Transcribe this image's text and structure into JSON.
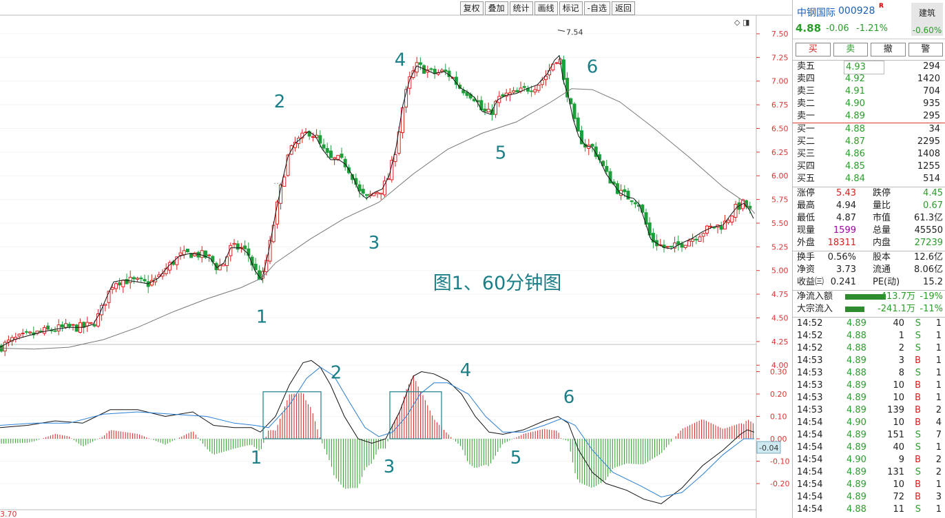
{
  "toolbar": [
    "复权",
    "叠加",
    "统计",
    "画线",
    "标记",
    "-自选",
    "返回"
  ],
  "chart_data": [
    {
      "type": "candlestick",
      "title": "图1、60分钟图",
      "y_ticks": [
        "7.50",
        "7.25",
        "7.00",
        "6.75",
        "6.50",
        "6.25",
        "6.00",
        "5.75",
        "5.50",
        "5.25",
        "5.00",
        "4.75",
        "4.50",
        "4.25",
        "4.00"
      ],
      "ylim": [
        3.83,
        7.7
      ],
      "max_label": "7.54",
      "close_path": [
        [
          0,
          4.19
        ],
        [
          20,
          4.27
        ],
        [
          40,
          4.31
        ],
        [
          60,
          4.35
        ],
        [
          80,
          4.38
        ],
        [
          100,
          4.4
        ],
        [
          120,
          4.4
        ],
        [
          135,
          4.43
        ],
        [
          145,
          4.55
        ],
        [
          155,
          4.72
        ],
        [
          165,
          4.88
        ],
        [
          180,
          4.9
        ],
        [
          200,
          4.88
        ],
        [
          215,
          4.86
        ],
        [
          230,
          4.92
        ],
        [
          245,
          5.05
        ],
        [
          260,
          5.15
        ],
        [
          275,
          5.18
        ],
        [
          290,
          5.17
        ],
        [
          305,
          5.13
        ],
        [
          315,
          5.03
        ],
        [
          325,
          5.08
        ],
        [
          335,
          5.24
        ],
        [
          350,
          5.24
        ],
        [
          360,
          5.18
        ],
        [
          370,
          5.0
        ],
        [
          380,
          4.9
        ],
        [
          390,
          5.2
        ],
        [
          400,
          5.6
        ],
        [
          410,
          5.95
        ],
        [
          418,
          6.2
        ],
        [
          428,
          6.34
        ],
        [
          438,
          6.4
        ],
        [
          448,
          6.47
        ],
        [
          458,
          6.42
        ],
        [
          468,
          6.28
        ],
        [
          480,
          6.17
        ],
        [
          492,
          6.17
        ],
        [
          502,
          6.12
        ],
        [
          512,
          6.0
        ],
        [
          522,
          5.82
        ],
        [
          532,
          5.76
        ],
        [
          545,
          5.83
        ],
        [
          555,
          5.86
        ],
        [
          565,
          6.0
        ],
        [
          575,
          6.3
        ],
        [
          585,
          6.75
        ],
        [
          595,
          7.02
        ],
        [
          605,
          7.16
        ],
        [
          618,
          7.12
        ],
        [
          630,
          7.08
        ],
        [
          645,
          7.1
        ],
        [
          655,
          7.05
        ],
        [
          668,
          6.93
        ],
        [
          680,
          6.88
        ],
        [
          690,
          6.82
        ],
        [
          700,
          6.68
        ],
        [
          712,
          6.65
        ],
        [
          722,
          6.8
        ],
        [
          735,
          6.85
        ],
        [
          750,
          6.87
        ],
        [
          765,
          6.92
        ],
        [
          780,
          6.96
        ],
        [
          795,
          7.08
        ],
        [
          805,
          7.22
        ],
        [
          812,
          7.27
        ],
        [
          818,
          7.0
        ],
        [
          825,
          6.85
        ],
        [
          832,
          6.6
        ],
        [
          840,
          6.42
        ],
        [
          850,
          6.32
        ],
        [
          860,
          6.3
        ],
        [
          870,
          6.18
        ],
        [
          880,
          6.02
        ],
        [
          890,
          5.92
        ],
        [
          900,
          5.82
        ],
        [
          910,
          5.78
        ],
        [
          920,
          5.76
        ],
        [
          928,
          5.7
        ],
        [
          935,
          5.55
        ],
        [
          945,
          5.33
        ],
        [
          955,
          5.28
        ],
        [
          965,
          5.24
        ],
        [
          975,
          5.23
        ],
        [
          990,
          5.29
        ],
        [
          1005,
          5.34
        ],
        [
          1020,
          5.41
        ],
        [
          1035,
          5.46
        ],
        [
          1050,
          5.48
        ],
        [
          1060,
          5.58
        ],
        [
          1070,
          5.67
        ],
        [
          1080,
          5.71
        ],
        [
          1088,
          5.64
        ],
        [
          1094,
          5.55
        ]
      ],
      "ma_path": [
        [
          0,
          4.18
        ],
        [
          50,
          4.17
        ],
        [
          100,
          4.19
        ],
        [
          150,
          4.27
        ],
        [
          200,
          4.4
        ],
        [
          250,
          4.56
        ],
        [
          300,
          4.7
        ],
        [
          350,
          4.82
        ],
        [
          380,
          4.92
        ],
        [
          400,
          5.08
        ],
        [
          450,
          5.33
        ],
        [
          500,
          5.55
        ],
        [
          550,
          5.72
        ],
        [
          600,
          6.02
        ],
        [
          650,
          6.28
        ],
        [
          700,
          6.45
        ],
        [
          750,
          6.57
        ],
        [
          800,
          6.78
        ],
        [
          830,
          6.92
        ],
        [
          860,
          6.91
        ],
        [
          900,
          6.78
        ],
        [
          950,
          6.5
        ],
        [
          1000,
          6.2
        ],
        [
          1050,
          5.88
        ],
        [
          1080,
          5.73
        ],
        [
          1096,
          5.6
        ]
      ],
      "annotations": [
        {
          "text": "1",
          "x": 380,
          "y": 4.45
        },
        {
          "text": "2",
          "x": 406,
          "y": 6.72
        },
        {
          "text": "3",
          "x": 543,
          "y": 5.23
        },
        {
          "text": "4",
          "x": 581,
          "y": 7.16
        },
        {
          "text": "5",
          "x": 727,
          "y": 6.18
        },
        {
          "text": "6",
          "x": 860,
          "y": 7.09
        }
      ]
    },
    {
      "type": "macd",
      "y_ticks": [
        "0.30",
        "0.20",
        "0.10",
        "0.00",
        "-0.10",
        "-0.20"
      ],
      "ylim": [
        -0.3,
        0.4
      ],
      "current_value": "-0.04",
      "dif_path": [
        [
          0,
          0.05
        ],
        [
          40,
          0.06
        ],
        [
          80,
          0.08
        ],
        [
          120,
          0.07
        ],
        [
          160,
          0.13
        ],
        [
          200,
          0.13
        ],
        [
          240,
          0.1
        ],
        [
          280,
          0.12
        ],
        [
          310,
          0.06
        ],
        [
          340,
          0.05
        ],
        [
          365,
          0.05
        ],
        [
          378,
          0.03
        ],
        [
          400,
          0.1
        ],
        [
          420,
          0.24
        ],
        [
          440,
          0.34
        ],
        [
          452,
          0.35
        ],
        [
          465,
          0.32
        ],
        [
          480,
          0.24
        ],
        [
          500,
          0.1
        ],
        [
          520,
          0.0
        ],
        [
          540,
          -0.02
        ],
        [
          560,
          0.0
        ],
        [
          580,
          0.12
        ],
        [
          600,
          0.28
        ],
        [
          612,
          0.3
        ],
        [
          630,
          0.29
        ],
        [
          650,
          0.26
        ],
        [
          670,
          0.2
        ],
        [
          690,
          0.1
        ],
        [
          710,
          0.03
        ],
        [
          730,
          0.02
        ],
        [
          760,
          0.04
        ],
        [
          790,
          0.08
        ],
        [
          810,
          0.1
        ],
        [
          825,
          0.07
        ],
        [
          840,
          -0.05
        ],
        [
          860,
          -0.15
        ],
        [
          880,
          -0.2
        ],
        [
          910,
          -0.23
        ],
        [
          935,
          -0.27
        ],
        [
          960,
          -0.29
        ],
        [
          990,
          -0.22
        ],
        [
          1020,
          -0.12
        ],
        [
          1050,
          -0.05
        ],
        [
          1075,
          0.02
        ],
        [
          1085,
          0.04
        ],
        [
          1095,
          0.03
        ]
      ],
      "dea_path": [
        [
          0,
          0.06
        ],
        [
          50,
          0.07
        ],
        [
          100,
          0.07
        ],
        [
          150,
          0.11
        ],
        [
          200,
          0.12
        ],
        [
          250,
          0.11
        ],
        [
          300,
          0.1
        ],
        [
          340,
          0.07
        ],
        [
          370,
          0.06
        ],
        [
          390,
          0.05
        ],
        [
          420,
          0.15
        ],
        [
          445,
          0.27
        ],
        [
          465,
          0.32
        ],
        [
          485,
          0.28
        ],
        [
          510,
          0.15
        ],
        [
          530,
          0.05
        ],
        [
          550,
          0.01
        ],
        [
          570,
          0.03
        ],
        [
          590,
          0.1
        ],
        [
          610,
          0.2
        ],
        [
          630,
          0.25
        ],
        [
          650,
          0.25
        ],
        [
          680,
          0.2
        ],
        [
          705,
          0.1
        ],
        [
          730,
          0.03
        ],
        [
          760,
          0.03
        ],
        [
          790,
          0.06
        ],
        [
          815,
          0.09
        ],
        [
          835,
          0.06
        ],
        [
          860,
          -0.05
        ],
        [
          890,
          -0.15
        ],
        [
          930,
          -0.21
        ],
        [
          960,
          -0.26
        ],
        [
          990,
          -0.24
        ],
        [
          1020,
          -0.16
        ],
        [
          1050,
          -0.07
        ],
        [
          1080,
          0.0
        ],
        [
          1095,
          0.0
        ]
      ],
      "annotations": [
        {
          "text": "1",
          "x": 372,
          "y": -0.11
        },
        {
          "text": "2",
          "x": 488,
          "y": 0.27
        },
        {
          "text": "3",
          "x": 565,
          "y": -0.15
        },
        {
          "text": "4",
          "x": 676,
          "y": 0.28
        },
        {
          "text": "5",
          "x": 749,
          "y": -0.11
        },
        {
          "text": "6",
          "x": 826,
          "y": 0.16
        }
      ],
      "boxes": [
        {
          "x0": 382,
          "x1": 466,
          "y0": 0.21,
          "y1": 0.0
        },
        {
          "x0": 566,
          "x1": 641,
          "y0": 0.21,
          "y1": 0.0
        }
      ]
    }
  ],
  "bottom_label": "3.70",
  "panel": {
    "stock_name": "中钢国际",
    "stock_code": "000928",
    "badge": "R",
    "price": "4.88",
    "change": "-0.06",
    "change_pct": "-1.21%",
    "sector": {
      "name": "建筑",
      "pct": "-0.60%"
    },
    "buttons": [
      "买",
      "卖",
      "撤",
      "警"
    ],
    "asks": [
      {
        "label": "卖五",
        "price": "4.93",
        "vol": "294"
      },
      {
        "label": "卖四",
        "price": "4.92",
        "vol": "1420"
      },
      {
        "label": "卖三",
        "price": "4.91",
        "vol": "704"
      },
      {
        "label": "卖二",
        "price": "4.90",
        "vol": "935"
      },
      {
        "label": "卖一",
        "price": "4.89",
        "vol": "295"
      }
    ],
    "bids": [
      {
        "label": "买一",
        "price": "4.88",
        "vol": "34"
      },
      {
        "label": "买二",
        "price": "4.87",
        "vol": "2295"
      },
      {
        "label": "买三",
        "price": "4.86",
        "vol": "1408"
      },
      {
        "label": "买四",
        "price": "4.85",
        "vol": "1255"
      },
      {
        "label": "买五",
        "price": "4.84",
        "vol": "514"
      }
    ],
    "stats1": [
      {
        "l1": "涨停",
        "v1": "5.43",
        "c1": "red",
        "l2": "跌停",
        "v2": "4.45",
        "c2": "green"
      },
      {
        "l1": "最高",
        "v1": "4.94",
        "c1": "",
        "l2": "量比",
        "v2": "0.67",
        "c2": "green"
      },
      {
        "l1": "最低",
        "v1": "4.87",
        "c1": "",
        "l2": "市值",
        "v2": "61.3亿",
        "c2": ""
      },
      {
        "l1": "现量",
        "v1": "1599",
        "c1": "purple",
        "l2": "总量",
        "v2": "45550",
        "c2": ""
      },
      {
        "l1": "外盘",
        "v1": "18311",
        "c1": "red",
        "l2": "内盘",
        "v2": "27239",
        "c2": "green"
      }
    ],
    "stats2": [
      {
        "l1": "换手",
        "v1": "0.56%",
        "c1": "",
        "l2": "股本",
        "v2": "12.6亿",
        "c2": ""
      },
      {
        "l1": "净资",
        "v1": "3.73",
        "c1": "",
        "l2": "流通",
        "v2": "8.06亿",
        "c2": ""
      },
      {
        "l1": "收益㈢",
        "v1": "0.241",
        "c1": "",
        "l2": "PE(动)",
        "v2": "15.2",
        "c2": ""
      }
    ],
    "flows": [
      {
        "label": "净流入额",
        "value": "-413.7万",
        "pct": "-19%",
        "ratio": 0.95
      },
      {
        "label": "大宗流入",
        "value": "-241.1万",
        "pct": "-11%",
        "ratio": 0.45
      }
    ],
    "ticks": [
      {
        "t": "14:52",
        "p": "4.89",
        "v": "40",
        "d": "S",
        "n": "1"
      },
      {
        "t": "14:52",
        "p": "4.88",
        "v": "1",
        "d": "S",
        "n": "1"
      },
      {
        "t": "14:52",
        "p": "4.88",
        "v": "2",
        "d": "S",
        "n": "1"
      },
      {
        "t": "14:53",
        "p": "4.89",
        "v": "3",
        "d": "B",
        "n": "1"
      },
      {
        "t": "14:53",
        "p": "4.88",
        "v": "8",
        "d": "S",
        "n": "1"
      },
      {
        "t": "14:53",
        "p": "4.89",
        "v": "10",
        "d": "B",
        "n": "1"
      },
      {
        "t": "14:53",
        "p": "4.89",
        "v": "10",
        "d": "B",
        "n": "1"
      },
      {
        "t": "14:53",
        "p": "4.89",
        "v": "139",
        "d": "B",
        "n": "2"
      },
      {
        "t": "14:54",
        "p": "4.90",
        "v": "10",
        "d": "B",
        "n": "4"
      },
      {
        "t": "14:54",
        "p": "4.89",
        "v": "151",
        "d": "S",
        "n": "7"
      },
      {
        "t": "14:54",
        "p": "4.89",
        "v": "40",
        "d": "S",
        "n": "1"
      },
      {
        "t": "14:54",
        "p": "4.90",
        "v": "9",
        "d": "B",
        "n": "2"
      },
      {
        "t": "14:54",
        "p": "4.89",
        "v": "131",
        "d": "S",
        "n": "2"
      },
      {
        "t": "14:54",
        "p": "4.89",
        "v": "10",
        "d": "B",
        "n": "1"
      },
      {
        "t": "14:54",
        "p": "4.89",
        "v": "72",
        "d": "B",
        "n": "3"
      },
      {
        "t": "14:54",
        "p": "4.88",
        "v": "11",
        "d": "S",
        "n": "1"
      }
    ]
  }
}
